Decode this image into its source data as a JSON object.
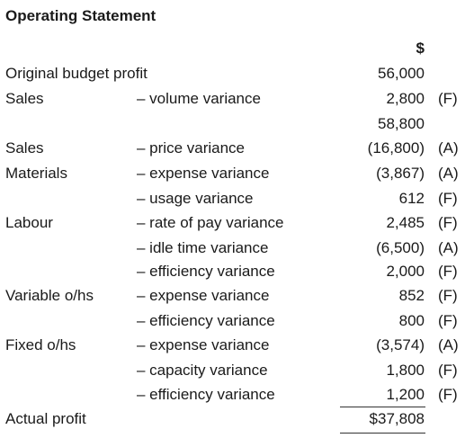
{
  "header": {
    "title": "Operating Statement",
    "currency": "$"
  },
  "rows": [
    {
      "label": "Original budget profit",
      "amount": "56,000"
    },
    {
      "label": "Sales",
      "item": "– volume variance",
      "amount": "2,800",
      "note": "(F)"
    },
    {
      "amount": "58,800"
    },
    {
      "label": "Sales",
      "item": "– price variance",
      "amount": "(16,800)",
      "note": "(A)"
    },
    {
      "label": "Materials",
      "item": "– expense variance",
      "amount": "(3,867)",
      "note": "(A)"
    },
    {
      "item": "– usage variance",
      "amount": "612",
      "note": "(F)"
    },
    {
      "label": "Labour",
      "item": "– rate of pay variance",
      "amount": "2,485",
      "note": "(F)"
    },
    {
      "item": "– idle time variance",
      "amount": "(6,500)",
      "note": "(A)"
    },
    {
      "item": "– efficiency variance",
      "amount": "2,000",
      "note": "(F)"
    },
    {
      "label": "Variable o/hs",
      "item": "– expense variance",
      "amount": "852",
      "note": "(F)"
    },
    {
      "item": "– efficiency variance",
      "amount": "800",
      "note": "(F)"
    },
    {
      "label": "Fixed o/hs",
      "item": "– expense variance",
      "amount": "(3,574)",
      "note": "(A)"
    },
    {
      "item": "– capacity variance",
      "amount": "1,800",
      "note": "(F)"
    },
    {
      "item": "– efficiency variance",
      "amount": "1,200",
      "note": "(F)"
    },
    {
      "label": "Actual profit",
      "amount": "$37,808"
    }
  ]
}
